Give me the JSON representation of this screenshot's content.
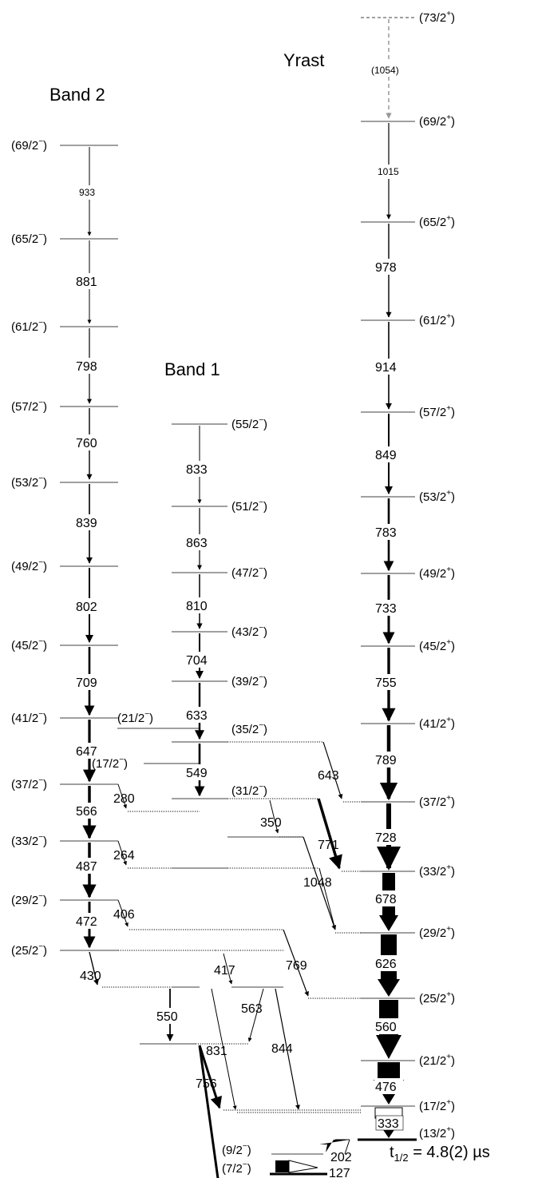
{
  "bands": {
    "yrast": {
      "title": "Yrast",
      "levels": [
        {
          "id": "y13",
          "label": "(13/2",
          "parity": "+"
        },
        {
          "id": "y17",
          "label": "(17/2",
          "parity": "+"
        },
        {
          "id": "y21",
          "label": "(21/2",
          "parity": "+"
        },
        {
          "id": "y25",
          "label": "(25/2",
          "parity": "+"
        },
        {
          "id": "y29",
          "label": "(29/2",
          "parity": "+"
        },
        {
          "id": "y33",
          "label": "(33/2",
          "parity": "+"
        },
        {
          "id": "y37",
          "label": "(37/2",
          "parity": "+"
        },
        {
          "id": "y41",
          "label": "(41/2",
          "parity": "+"
        },
        {
          "id": "y45",
          "label": "(45/2",
          "parity": "+"
        },
        {
          "id": "y49",
          "label": "(49/2",
          "parity": "+"
        },
        {
          "id": "y53",
          "label": "(53/2",
          "parity": "+"
        },
        {
          "id": "y57",
          "label": "(57/2",
          "parity": "+"
        },
        {
          "id": "y61",
          "label": "(61/2",
          "parity": "+"
        },
        {
          "id": "y65",
          "label": "(65/2",
          "parity": "+"
        },
        {
          "id": "y69",
          "label": "(69/2",
          "parity": "+"
        },
        {
          "id": "y73",
          "label": "(73/2",
          "parity": "+"
        }
      ]
    },
    "band1": {
      "title": "Band 1",
      "levels": [
        {
          "id": "a21",
          "label": "(21/2",
          "parity": "−"
        },
        {
          "id": "a31",
          "label": "(31/2",
          "parity": "−"
        },
        {
          "id": "a35",
          "label": "(35/2",
          "parity": "−"
        },
        {
          "id": "a39",
          "label": "(39/2",
          "parity": "−"
        },
        {
          "id": "a43",
          "label": "(43/2",
          "parity": "−"
        },
        {
          "id": "a47",
          "label": "(47/2",
          "parity": "−"
        },
        {
          "id": "a51",
          "label": "(51/2",
          "parity": "−"
        },
        {
          "id": "a55",
          "label": "(55/2",
          "parity": "−"
        }
      ]
    },
    "band2": {
      "title": "Band 2",
      "levels": [
        {
          "id": "b25",
          "label": "(25/2",
          "parity": "−"
        },
        {
          "id": "b29",
          "label": "(29/2",
          "parity": "−"
        },
        {
          "id": "b33",
          "label": "(33/2",
          "parity": "−"
        },
        {
          "id": "b37",
          "label": "(37/2",
          "parity": "−"
        },
        {
          "id": "b41",
          "label": "(41/2",
          "parity": "−"
        },
        {
          "id": "b45",
          "label": "(45/2",
          "parity": "−"
        },
        {
          "id": "b49",
          "label": "(49/2",
          "parity": "−"
        },
        {
          "id": "b53",
          "label": "(53/2",
          "parity": "−"
        },
        {
          "id": "b57",
          "label": "(57/2",
          "parity": "−"
        },
        {
          "id": "b61",
          "label": "(61/2",
          "parity": "−"
        },
        {
          "id": "b65",
          "label": "(65/2",
          "parity": "−"
        },
        {
          "id": "b69",
          "label": "(69/2",
          "parity": "−"
        }
      ]
    },
    "low": {
      "levels": [
        {
          "id": "l17",
          "label": "(17/2",
          "parity": "−"
        },
        {
          "id": "l9",
          "label": "(9/2",
          "parity": "−"
        },
        {
          "id": "l7",
          "label": "(7/2",
          "parity": "−"
        }
      ]
    }
  },
  "transitions": [
    {
      "from": "y73",
      "to": "y69",
      "energy": "(1054)",
      "tentative": true
    },
    {
      "from": "y69",
      "to": "y65",
      "energy": "1015"
    },
    {
      "from": "y65",
      "to": "y61",
      "energy": "978"
    },
    {
      "from": "y61",
      "to": "y57",
      "energy": "914"
    },
    {
      "from": "y57",
      "to": "y53",
      "energy": "849"
    },
    {
      "from": "y53",
      "to": "y49",
      "energy": "783"
    },
    {
      "from": "y49",
      "to": "y45",
      "energy": "733"
    },
    {
      "from": "y45",
      "to": "y41",
      "energy": "755"
    },
    {
      "from": "y41",
      "to": "y37",
      "energy": "789"
    },
    {
      "from": "y37",
      "to": "y33",
      "energy": "728"
    },
    {
      "from": "y33",
      "to": "y29",
      "energy": "678"
    },
    {
      "from": "y29",
      "to": "y25",
      "energy": "626"
    },
    {
      "from": "y25",
      "to": "y21",
      "energy": "560"
    },
    {
      "from": "y21",
      "to": "y17",
      "energy": "476"
    },
    {
      "from": "y17",
      "to": "y13",
      "energy": "333"
    },
    {
      "from": "y13",
      "to": "l9",
      "energy": "202"
    },
    {
      "from": "l9",
      "to": "l7",
      "energy": "127"
    },
    {
      "from": "a55",
      "to": "a51",
      "energy": "833"
    },
    {
      "from": "a51",
      "to": "a47",
      "energy": "863"
    },
    {
      "from": "a47",
      "to": "a43",
      "energy": "810"
    },
    {
      "from": "a43",
      "to": "a39",
      "energy": "704"
    },
    {
      "from": "a39",
      "to": "a35",
      "energy": "633"
    },
    {
      "from": "a35",
      "to": "a31",
      "energy": "549"
    },
    {
      "from": "a35",
      "to": "y33",
      "energy": "643"
    },
    {
      "from": "a31",
      "to": "y29",
      "energy": "771"
    },
    {
      "from": "a31",
      "to": "mid",
      "energy": "350"
    },
    {
      "from": "mid",
      "to": "y25",
      "energy": "1048"
    },
    {
      "from": "b69",
      "to": "b65",
      "energy": "933"
    },
    {
      "from": "b65",
      "to": "b61",
      "energy": "881"
    },
    {
      "from": "b61",
      "to": "b57",
      "energy": "798"
    },
    {
      "from": "b57",
      "to": "b53",
      "energy": "760"
    },
    {
      "from": "b53",
      "to": "b49",
      "energy": "839"
    },
    {
      "from": "b49",
      "to": "b45",
      "energy": "802"
    },
    {
      "from": "b45",
      "to": "b41",
      "energy": "709"
    },
    {
      "from": "b41",
      "to": "b37",
      "energy": "647"
    },
    {
      "from": "b37",
      "to": "b33",
      "energy": "566"
    },
    {
      "from": "b33",
      "to": "b29",
      "energy": "487"
    },
    {
      "from": "b29",
      "to": "b25",
      "energy": "472"
    },
    {
      "from": "b37",
      "to": "a35",
      "energy": "280"
    },
    {
      "from": "b33",
      "to": "a31",
      "energy": "264"
    },
    {
      "from": "b29",
      "to": "x",
      "energy": "406"
    },
    {
      "from": "b25",
      "to": "a21",
      "energy": "430"
    },
    {
      "from": "b25",
      "to": "e21",
      "energy": "417"
    },
    {
      "from": "x",
      "to": "y25",
      "energy": "769"
    },
    {
      "from": "a21",
      "to": "l17",
      "energy": "550"
    },
    {
      "from": "a21",
      "to": "y21",
      "energy": "831"
    },
    {
      "from": "e21",
      "to": "l17",
      "energy": "563"
    },
    {
      "from": "e21",
      "to": "y21",
      "energy": "844"
    },
    {
      "from": "l17",
      "to": "y17",
      "energy": "756"
    }
  ],
  "isomer": {
    "label": "t",
    "sub": "1/2",
    "value": " = 4.8(2) µs"
  }
}
